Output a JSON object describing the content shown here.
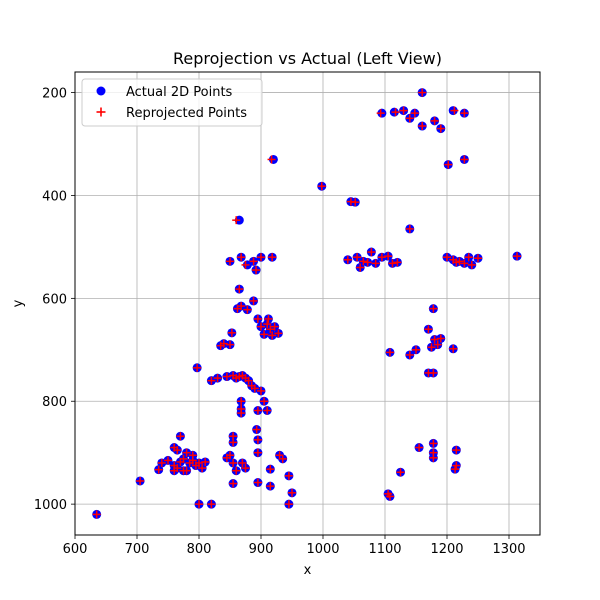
{
  "chart_data": {
    "type": "scatter",
    "title": "Reprojection vs Actual (Left View)",
    "xlabel": "x",
    "ylabel": "y",
    "xlim": [
      600,
      1350
    ],
    "ylim": [
      1060,
      160
    ],
    "y_inverted": true,
    "grid": true,
    "legend_placement": "top-left",
    "xticks": [
      600,
      700,
      800,
      900,
      1000,
      1100,
      1200,
      1300
    ],
    "yticks": [
      200,
      400,
      600,
      800,
      1000
    ],
    "xtick_labels": [
      "600",
      "700",
      "800",
      "900",
      "1000",
      "1100",
      "1200",
      "1300"
    ],
    "ytick_labels": [
      "200",
      "400",
      "600",
      "800",
      "1000"
    ],
    "colors": {
      "actual": "#0000ff",
      "reprojected": "#ff0000"
    },
    "series": [
      {
        "name": "Actual 2D Points",
        "marker": "circle",
        "color": "#0000ff",
        "points": [
          [
            1160,
            200
          ],
          [
            1095,
            240
          ],
          [
            1115,
            238
          ],
          [
            1130,
            235
          ],
          [
            1140,
            250
          ],
          [
            1148,
            240
          ],
          [
            1160,
            265
          ],
          [
            1180,
            255
          ],
          [
            1190,
            270
          ],
          [
            1210,
            235
          ],
          [
            1228,
            240
          ],
          [
            920,
            330
          ],
          [
            1228,
            330
          ],
          [
            1202,
            340
          ],
          [
            998,
            382
          ],
          [
            1045,
            412
          ],
          [
            1052,
            413
          ],
          [
            865,
            448
          ],
          [
            1140,
            465
          ],
          [
            850,
            528
          ],
          [
            868,
            520
          ],
          [
            878,
            535
          ],
          [
            888,
            528
          ],
          [
            892,
            545
          ],
          [
            900,
            520
          ],
          [
            918,
            520
          ],
          [
            1040,
            525
          ],
          [
            1055,
            520
          ],
          [
            1060,
            540
          ],
          [
            1065,
            528
          ],
          [
            1072,
            530
          ],
          [
            1078,
            510
          ],
          [
            1085,
            532
          ],
          [
            1095,
            520
          ],
          [
            1105,
            518
          ],
          [
            1112,
            532
          ],
          [
            1120,
            530
          ],
          [
            1200,
            520
          ],
          [
            1210,
            525
          ],
          [
            1215,
            530
          ],
          [
            1220,
            528
          ],
          [
            1228,
            532
          ],
          [
            1235,
            520
          ],
          [
            1240,
            535
          ],
          [
            1250,
            522
          ],
          [
            1313,
            518
          ],
          [
            865,
            582
          ],
          [
            868,
            615
          ],
          [
            878,
            622
          ],
          [
            888,
            605
          ],
          [
            862,
            620
          ],
          [
            1178,
            620
          ],
          [
            895,
            640
          ],
          [
            900,
            655
          ],
          [
            905,
            670
          ],
          [
            910,
            650
          ],
          [
            915,
            660
          ],
          [
            918,
            672
          ],
          [
            922,
            655
          ],
          [
            928,
            668
          ],
          [
            912,
            640
          ],
          [
            1170,
            660
          ],
          [
            1180,
            680
          ],
          [
            1185,
            690
          ],
          [
            1175,
            695
          ],
          [
            1190,
            678
          ],
          [
            1150,
            700
          ],
          [
            1140,
            710
          ],
          [
            1108,
            705
          ],
          [
            1210,
            698
          ],
          [
            840,
            688
          ],
          [
            835,
            692
          ],
          [
            853,
            667
          ],
          [
            850,
            690
          ],
          [
            797,
            735
          ],
          [
            820,
            760
          ],
          [
            830,
            755
          ],
          [
            845,
            752
          ],
          [
            855,
            750
          ],
          [
            865,
            752
          ],
          [
            875,
            755
          ],
          [
            880,
            760
          ],
          [
            885,
            770
          ],
          [
            890,
            775
          ],
          [
            860,
            755
          ],
          [
            870,
            750
          ],
          [
            1170,
            745
          ],
          [
            1178,
            745
          ],
          [
            900,
            780
          ],
          [
            905,
            800
          ],
          [
            910,
            818
          ],
          [
            895,
            818
          ],
          [
            868,
            800
          ],
          [
            868,
            815
          ],
          [
            868,
            823
          ],
          [
            893,
            855
          ],
          [
            895,
            875
          ],
          [
            855,
            868
          ],
          [
            855,
            880
          ],
          [
            770,
            868
          ],
          [
            740,
            920
          ],
          [
            750,
            915
          ],
          [
            760,
            925
          ],
          [
            765,
            930
          ],
          [
            770,
            918
          ],
          [
            775,
            912
          ],
          [
            780,
            935
          ],
          [
            785,
            920
          ],
          [
            790,
            915
          ],
          [
            795,
            925
          ],
          [
            800,
            920
          ],
          [
            805,
            930
          ],
          [
            810,
            918
          ],
          [
            760,
            890
          ],
          [
            765,
            895
          ],
          [
            780,
            900
          ],
          [
            790,
            905
          ],
          [
            775,
            935
          ],
          [
            760,
            935
          ],
          [
            735,
            933
          ],
          [
            705,
            955
          ],
          [
            845,
            910
          ],
          [
            850,
            905
          ],
          [
            855,
            920
          ],
          [
            860,
            935
          ],
          [
            870,
            920
          ],
          [
            875,
            930
          ],
          [
            895,
            900
          ],
          [
            915,
            932
          ],
          [
            930,
            905
          ],
          [
            935,
            912
          ],
          [
            945,
            945
          ],
          [
            950,
            978
          ],
          [
            945,
            1000
          ],
          [
            915,
            965
          ],
          [
            895,
            958
          ],
          [
            855,
            960
          ],
          [
            820,
            1000
          ],
          [
            800,
            1000
          ],
          [
            1155,
            890
          ],
          [
            1178,
            882
          ],
          [
            1215,
            895
          ],
          [
            1178,
            900
          ],
          [
            1178,
            910
          ],
          [
            1215,
            925
          ],
          [
            1213,
            932
          ],
          [
            1125,
            938
          ],
          [
            1105,
            980
          ],
          [
            1108,
            985
          ],
          [
            635,
            1020
          ]
        ]
      },
      {
        "name": "Reprojected Points",
        "marker": "plus",
        "color": "#ff0000",
        "points": [
          [
            1160,
            200
          ],
          [
            1093,
            240
          ],
          [
            1117,
            238
          ],
          [
            1130,
            235
          ],
          [
            1140,
            250
          ],
          [
            1148,
            240
          ],
          [
            1160,
            265
          ],
          [
            1180,
            255
          ],
          [
            1190,
            270
          ],
          [
            1212,
            235
          ],
          [
            1228,
            240
          ],
          [
            917,
            330
          ],
          [
            1228,
            330
          ],
          [
            1202,
            340
          ],
          [
            998,
            382
          ],
          [
            1045,
            412
          ],
          [
            1052,
            413
          ],
          [
            860,
            448
          ],
          [
            1140,
            465
          ],
          [
            850,
            528
          ],
          [
            868,
            520
          ],
          [
            875,
            535
          ],
          [
            888,
            528
          ],
          [
            892,
            545
          ],
          [
            900,
            520
          ],
          [
            918,
            520
          ],
          [
            1040,
            525
          ],
          [
            1055,
            520
          ],
          [
            1060,
            540
          ],
          [
            1065,
            528
          ],
          [
            1072,
            530
          ],
          [
            1078,
            510
          ],
          [
            1085,
            532
          ],
          [
            1095,
            520
          ],
          [
            1105,
            518
          ],
          [
            1112,
            532
          ],
          [
            1120,
            530
          ],
          [
            1200,
            520
          ],
          [
            1210,
            525
          ],
          [
            1215,
            530
          ],
          [
            1220,
            528
          ],
          [
            1228,
            532
          ],
          [
            1235,
            520
          ],
          [
            1240,
            535
          ],
          [
            1250,
            522
          ],
          [
            1313,
            518
          ],
          [
            865,
            582
          ],
          [
            868,
            615
          ],
          [
            878,
            622
          ],
          [
            888,
            605
          ],
          [
            862,
            620
          ],
          [
            1178,
            620
          ],
          [
            895,
            640
          ],
          [
            900,
            655
          ],
          [
            905,
            670
          ],
          [
            910,
            650
          ],
          [
            915,
            660
          ],
          [
            918,
            672
          ],
          [
            922,
            655
          ],
          [
            928,
            668
          ],
          [
            912,
            640
          ],
          [
            1170,
            660
          ],
          [
            1180,
            680
          ],
          [
            1185,
            690
          ],
          [
            1175,
            695
          ],
          [
            1190,
            678
          ],
          [
            1150,
            700
          ],
          [
            1140,
            710
          ],
          [
            1108,
            705
          ],
          [
            1210,
            698
          ],
          [
            840,
            688
          ],
          [
            835,
            692
          ],
          [
            853,
            667
          ],
          [
            850,
            690
          ],
          [
            797,
            735
          ],
          [
            820,
            760
          ],
          [
            830,
            755
          ],
          [
            845,
            752
          ],
          [
            855,
            750
          ],
          [
            865,
            752
          ],
          [
            875,
            755
          ],
          [
            880,
            760
          ],
          [
            885,
            770
          ],
          [
            890,
            775
          ],
          [
            860,
            755
          ],
          [
            870,
            750
          ],
          [
            1170,
            745
          ],
          [
            1178,
            745
          ],
          [
            900,
            780
          ],
          [
            905,
            800
          ],
          [
            910,
            818
          ],
          [
            895,
            818
          ],
          [
            868,
            800
          ],
          [
            868,
            815
          ],
          [
            868,
            823
          ],
          [
            893,
            855
          ],
          [
            895,
            875
          ],
          [
            855,
            868
          ],
          [
            855,
            880
          ],
          [
            770,
            868
          ],
          [
            740,
            920
          ],
          [
            750,
            915
          ],
          [
            760,
            925
          ],
          [
            765,
            930
          ],
          [
            770,
            918
          ],
          [
            775,
            912
          ],
          [
            780,
            935
          ],
          [
            785,
            920
          ],
          [
            790,
            915
          ],
          [
            795,
            925
          ],
          [
            800,
            920
          ],
          [
            805,
            930
          ],
          [
            810,
            918
          ],
          [
            760,
            890
          ],
          [
            765,
            895
          ],
          [
            780,
            900
          ],
          [
            790,
            905
          ],
          [
            775,
            935
          ],
          [
            760,
            935
          ],
          [
            735,
            933
          ],
          [
            705,
            955
          ],
          [
            845,
            910
          ],
          [
            850,
            905
          ],
          [
            855,
            920
          ],
          [
            860,
            935
          ],
          [
            870,
            920
          ],
          [
            875,
            930
          ],
          [
            895,
            900
          ],
          [
            915,
            932
          ],
          [
            930,
            905
          ],
          [
            935,
            912
          ],
          [
            945,
            945
          ],
          [
            950,
            978
          ],
          [
            945,
            1000
          ],
          [
            915,
            965
          ],
          [
            895,
            958
          ],
          [
            855,
            960
          ],
          [
            820,
            1000
          ],
          [
            800,
            1000
          ],
          [
            1155,
            890
          ],
          [
            1178,
            882
          ],
          [
            1215,
            895
          ],
          [
            1178,
            900
          ],
          [
            1178,
            910
          ],
          [
            1215,
            925
          ],
          [
            1213,
            932
          ],
          [
            1125,
            938
          ],
          [
            1105,
            980
          ],
          [
            1108,
            985
          ],
          [
            635,
            1020
          ]
        ]
      }
    ]
  }
}
